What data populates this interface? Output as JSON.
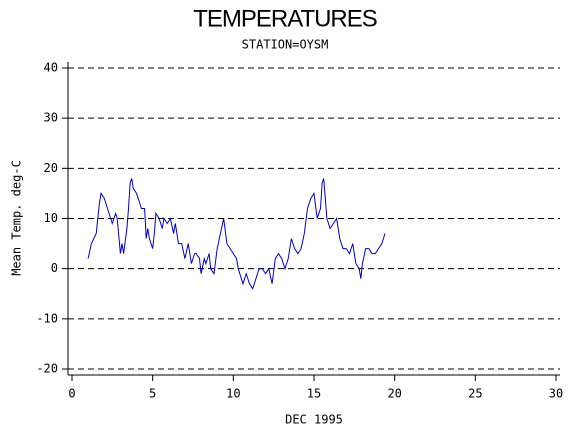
{
  "chart_data": {
    "type": "line",
    "title": "TEMPERATURES",
    "subtitle": "STATION=OYSM",
    "x_label": "DEC 1995",
    "y_label": "Mean Temp. deg-C",
    "color": "#0000cc",
    "grid": true,
    "xlim": [
      0,
      30
    ],
    "xticks": [
      0,
      5,
      10,
      15,
      20,
      25,
      30
    ],
    "ylim": [
      -20,
      40
    ],
    "yticks": [
      -20,
      -10,
      0,
      10,
      20,
      30,
      40
    ],
    "x": [
      1.0,
      1.2,
      1.5,
      1.7,
      1.8,
      2.0,
      2.2,
      2.4,
      2.5,
      2.7,
      2.8,
      3.0,
      3.1,
      3.2,
      3.4,
      3.5,
      3.6,
      3.7,
      3.8,
      4.0,
      4.2,
      4.3,
      4.5,
      4.6,
      4.7,
      4.8,
      5.0,
      5.1,
      5.2,
      5.4,
      5.6,
      5.7,
      5.9,
      6.1,
      6.3,
      6.4,
      6.6,
      6.8,
      7.0,
      7.2,
      7.4,
      7.6,
      7.7,
      7.9,
      8.0,
      8.2,
      8.3,
      8.5,
      8.6,
      8.8,
      9.0,
      9.2,
      9.4,
      9.6,
      9.8,
      10.0,
      10.2,
      10.3,
      10.5,
      10.6,
      10.8,
      11.0,
      11.2,
      11.4,
      11.6,
      11.8,
      12.0,
      12.2,
      12.4,
      12.6,
      12.8,
      13.0,
      13.2,
      13.4,
      13.6,
      13.8,
      14.0,
      14.2,
      14.4,
      14.6,
      14.8,
      15.0,
      15.2,
      15.4,
      15.5,
      15.6,
      15.8,
      16.0,
      16.2,
      16.4,
      16.6,
      16.8,
      17.0,
      17.2,
      17.4,
      17.6,
      17.8,
      17.9,
      18.0,
      18.2,
      18.4,
      18.6,
      18.8,
      19.0,
      19.2,
      19.4
    ],
    "values": [
      2,
      5,
      7,
      13,
      15,
      14,
      12,
      10,
      9,
      11,
      10,
      3,
      5,
      3,
      8,
      12,
      17,
      18,
      16,
      15,
      13,
      12,
      12,
      6,
      8,
      6,
      4,
      7,
      11,
      10,
      8,
      10,
      9,
      10,
      7,
      9,
      5,
      5,
      2,
      5,
      1,
      3,
      3,
      2,
      -1,
      2,
      1,
      3,
      0,
      -1,
      4,
      7,
      10,
      5,
      4,
      3,
      2,
      0,
      -2,
      -3,
      -1,
      -3,
      -4,
      -2,
      0,
      0,
      -1,
      0,
      -3,
      2,
      3,
      2,
      0,
      2,
      6,
      4,
      3,
      4,
      7,
      12,
      14,
      15,
      10,
      12,
      17,
      18,
      10,
      8,
      9,
      10,
      6,
      4,
      4,
      3,
      5,
      1,
      0,
      -2,
      1,
      4,
      4,
      3,
      3,
      4,
      5,
      7
    ]
  }
}
